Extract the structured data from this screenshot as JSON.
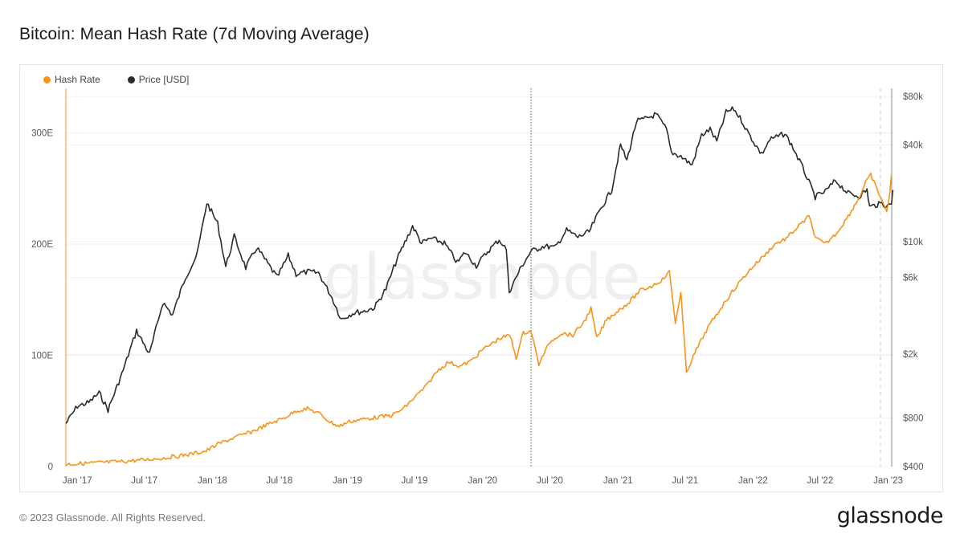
{
  "title": "Bitcoin: Mean Hash Rate (7d Moving Average)",
  "footer": {
    "copyright": "© 2023 Glassnode. All Rights Reserved.",
    "logo": "glassnode"
  },
  "watermark": "glassnode",
  "legend": [
    {
      "label": "Hash Rate",
      "color": "#f7931a"
    },
    {
      "label": "Price [USD]",
      "color": "#2b2b2b"
    }
  ],
  "chart_data": {
    "type": "line",
    "title": "Bitcoin: Mean Hash Rate (7d Moving Average)",
    "x_ticks": [
      "Jan '17",
      "Jul '17",
      "Jan '18",
      "Jul '18",
      "Jan '19",
      "Jul '19",
      "Jan '20",
      "Jul '20",
      "Jan '21",
      "Jul '21",
      "Jan '22",
      "Jul '22",
      "Jan '23"
    ],
    "x_range": [
      "2016-12-01",
      "2023-01-15"
    ],
    "y_left": {
      "label": "",
      "ticks": [
        "0",
        "100E",
        "200E",
        "300E"
      ],
      "tick_values": [
        0,
        100,
        200,
        300
      ],
      "range": [
        0,
        340
      ],
      "unit": "EH/s"
    },
    "y_right": {
      "label": "",
      "scale": "log",
      "ticks": [
        "$400",
        "$800",
        "$2k",
        "$6k",
        "$10k",
        "$40k",
        "$80k"
      ],
      "tick_values": [
        400,
        800,
        2000,
        6000,
        10000,
        40000,
        80000
      ],
      "range": [
        400,
        90000
      ]
    },
    "vertical_marker": "2020-05-11",
    "series": [
      {
        "name": "Hash Rate",
        "color": "#f7931a",
        "axis": "left",
        "points": [
          [
            "2016-12-01",
            2
          ],
          [
            "2017-01-01",
            2.5
          ],
          [
            "2017-03-01",
            3.5
          ],
          [
            "2017-05-01",
            4.5
          ],
          [
            "2017-07-01",
            6
          ],
          [
            "2017-09-01",
            8
          ],
          [
            "2017-11-01",
            11
          ],
          [
            "2017-12-15",
            14
          ],
          [
            "2018-01-15",
            20
          ],
          [
            "2018-03-01",
            26
          ],
          [
            "2018-04-15",
            31
          ],
          [
            "2018-06-01",
            38
          ],
          [
            "2018-07-15",
            44
          ],
          [
            "2018-08-15",
            50
          ],
          [
            "2018-09-15",
            52
          ],
          [
            "2018-10-15",
            48
          ],
          [
            "2018-11-15",
            40
          ],
          [
            "2018-12-10",
            36
          ],
          [
            "2019-01-01",
            40
          ],
          [
            "2019-02-01",
            42
          ],
          [
            "2019-03-15",
            44
          ],
          [
            "2019-05-01",
            46
          ],
          [
            "2019-06-01",
            52
          ],
          [
            "2019-07-01",
            62
          ],
          [
            "2019-08-01",
            72
          ],
          [
            "2019-09-01",
            86
          ],
          [
            "2019-10-01",
            94
          ],
          [
            "2019-11-01",
            90
          ],
          [
            "2019-12-01",
            95
          ],
          [
            "2020-01-01",
            105
          ],
          [
            "2020-02-15",
            115
          ],
          [
            "2020-03-15",
            118
          ],
          [
            "2020-04-01",
            98
          ],
          [
            "2020-04-20",
            120
          ],
          [
            "2020-05-11",
            122
          ],
          [
            "2020-06-01",
            92
          ],
          [
            "2020-07-01",
            112
          ],
          [
            "2020-08-01",
            120
          ],
          [
            "2020-09-01",
            118
          ],
          [
            "2020-10-01",
            130
          ],
          [
            "2020-10-20",
            142
          ],
          [
            "2020-11-05",
            115
          ],
          [
            "2020-12-01",
            132
          ],
          [
            "2021-01-01",
            140
          ],
          [
            "2021-02-01",
            148
          ],
          [
            "2021-03-01",
            158
          ],
          [
            "2021-04-01",
            162
          ],
          [
            "2021-05-01",
            168
          ],
          [
            "2021-05-20",
            175
          ],
          [
            "2021-06-05",
            130
          ],
          [
            "2021-06-20",
            155
          ],
          [
            "2021-07-05",
            85
          ],
          [
            "2021-08-01",
            105
          ],
          [
            "2021-09-01",
            125
          ],
          [
            "2021-10-01",
            140
          ],
          [
            "2021-11-01",
            155
          ],
          [
            "2021-12-01",
            168
          ],
          [
            "2022-01-01",
            180
          ],
          [
            "2022-02-01",
            190
          ],
          [
            "2022-03-01",
            200
          ],
          [
            "2022-04-01",
            205
          ],
          [
            "2022-05-01",
            215
          ],
          [
            "2022-06-01",
            225
          ],
          [
            "2022-06-20",
            205
          ],
          [
            "2022-07-15",
            200
          ],
          [
            "2022-08-15",
            210
          ],
          [
            "2022-09-15",
            225
          ],
          [
            "2022-10-15",
            242
          ],
          [
            "2022-11-01",
            255
          ],
          [
            "2022-11-15",
            262
          ],
          [
            "2022-12-01",
            250
          ],
          [
            "2022-12-15",
            240
          ],
          [
            "2022-12-28",
            228
          ],
          [
            "2023-01-05",
            246
          ],
          [
            "2023-01-10",
            262
          ]
        ]
      },
      {
        "name": "Price [USD]",
        "color": "#2b2b2b",
        "axis": "right",
        "points": [
          [
            "2016-12-01",
            740
          ],
          [
            "2017-01-01",
            950
          ],
          [
            "2017-02-01",
            1000
          ],
          [
            "2017-03-01",
            1150
          ],
          [
            "2017-03-25",
            900
          ],
          [
            "2017-05-01",
            1500
          ],
          [
            "2017-06-10",
            2800
          ],
          [
            "2017-07-15",
            2000
          ],
          [
            "2017-08-20",
            4200
          ],
          [
            "2017-09-15",
            3500
          ],
          [
            "2017-10-20",
            6000
          ],
          [
            "2017-11-20",
            8200
          ],
          [
            "2017-12-17",
            17500
          ],
          [
            "2018-01-15",
            13000
          ],
          [
            "2018-02-06",
            7000
          ],
          [
            "2018-03-01",
            10800
          ],
          [
            "2018-04-01",
            6900
          ],
          [
            "2018-05-01",
            9200
          ],
          [
            "2018-06-25",
            6000
          ],
          [
            "2018-07-25",
            8200
          ],
          [
            "2018-08-15",
            6300
          ],
          [
            "2018-09-15",
            6500
          ],
          [
            "2018-10-15",
            6400
          ],
          [
            "2018-11-20",
            4500
          ],
          [
            "2018-12-15",
            3300
          ],
          [
            "2019-01-15",
            3600
          ],
          [
            "2019-02-15",
            3700
          ],
          [
            "2019-03-15",
            3900
          ],
          [
            "2019-04-15",
            5100
          ],
          [
            "2019-05-15",
            7800
          ],
          [
            "2019-06-26",
            12500
          ],
          [
            "2019-07-20",
            9800
          ],
          [
            "2019-08-15",
            10500
          ],
          [
            "2019-09-20",
            9800
          ],
          [
            "2019-10-25",
            7400
          ],
          [
            "2019-11-15",
            8600
          ],
          [
            "2019-12-15",
            7100
          ],
          [
            "2020-01-15",
            8700
          ],
          [
            "2020-02-15",
            10300
          ],
          [
            "2020-03-05",
            9000
          ],
          [
            "2020-03-13",
            4900
          ],
          [
            "2020-04-15",
            7000
          ],
          [
            "2020-05-11",
            8700
          ],
          [
            "2020-06-15",
            9400
          ],
          [
            "2020-07-15",
            9200
          ],
          [
            "2020-08-15",
            11800
          ],
          [
            "2020-09-15",
            10700
          ],
          [
            "2020-10-15",
            11500
          ],
          [
            "2020-11-15",
            16000
          ],
          [
            "2020-12-15",
            21000
          ],
          [
            "2021-01-08",
            40000
          ],
          [
            "2021-01-25",
            32000
          ],
          [
            "2021-02-20",
            56000
          ],
          [
            "2021-03-15",
            58000
          ],
          [
            "2021-04-14",
            62000
          ],
          [
            "2021-05-12",
            50000
          ],
          [
            "2021-05-25",
            36000
          ],
          [
            "2021-06-20",
            34000
          ],
          [
            "2021-07-20",
            30000
          ],
          [
            "2021-08-15",
            46000
          ],
          [
            "2021-09-07",
            50000
          ],
          [
            "2021-09-25",
            42000
          ],
          [
            "2021-10-20",
            64000
          ],
          [
            "2021-11-10",
            67000
          ],
          [
            "2021-12-01",
            57000
          ],
          [
            "2021-12-20",
            47000
          ],
          [
            "2022-01-24",
            35000
          ],
          [
            "2022-02-15",
            43000
          ],
          [
            "2022-03-28",
            47000
          ],
          [
            "2022-04-15",
            40000
          ],
          [
            "2022-05-15",
            29000
          ],
          [
            "2022-06-18",
            19000
          ],
          [
            "2022-07-15",
            20500
          ],
          [
            "2022-08-12",
            24000
          ],
          [
            "2022-09-15",
            20000
          ],
          [
            "2022-10-15",
            19200
          ],
          [
            "2022-11-05",
            21000
          ],
          [
            "2022-11-12",
            16500
          ],
          [
            "2022-12-15",
            17300
          ],
          [
            "2022-12-31",
            16600
          ],
          [
            "2023-01-10",
            17400
          ],
          [
            "2023-01-14",
            21000
          ]
        ]
      }
    ]
  }
}
